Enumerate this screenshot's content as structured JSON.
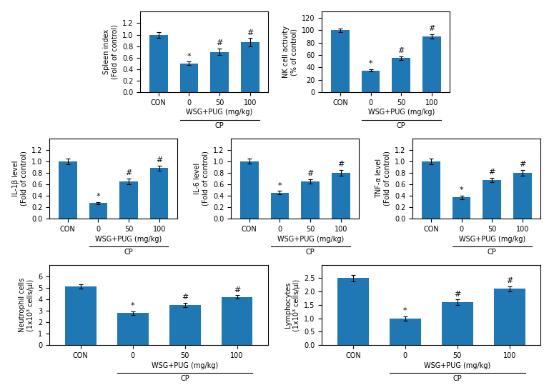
{
  "chart_data": [
    {
      "type": "bar",
      "ylabel": "Spleen index\n(Fold of control)",
      "categories": [
        "CON",
        "0",
        "50",
        "100"
      ],
      "values": [
        1.0,
        0.5,
        0.7,
        0.87
      ],
      "errors": [
        0.05,
        0.03,
        0.06,
        0.07
      ],
      "annotations": [
        null,
        "*",
        "#",
        "#"
      ],
      "ylim": [
        0,
        1.4
      ],
      "yticks": [
        {
          "value": 0,
          "label": "0.0"
        },
        0.2,
        0.4,
        0.6,
        0.8,
        {
          "value": 1,
          "label": "1.0"
        },
        1.2
      ],
      "xlabel": "WSG+PUG (mg/kg)",
      "bracket": {
        "label": "CP",
        "categories": [
          "0",
          "50",
          "100"
        ]
      }
    },
    {
      "type": "bar",
      "ylabel": "NK cell activity\n(% of control)",
      "categories": [
        "CON",
        "0",
        "50",
        "100"
      ],
      "values": [
        100,
        35,
        55,
        90
      ],
      "errors": [
        3,
        2,
        3,
        4
      ],
      "annotations": [
        null,
        "*",
        "#",
        "#"
      ],
      "ylim": [
        0,
        130
      ],
      "yticks": [
        0,
        20,
        40,
        60,
        80,
        100,
        120
      ],
      "xlabel": "WSG+PUG (mg/kg)",
      "bracket": {
        "label": "CP",
        "categories": [
          "0",
          "50",
          "100"
        ]
      }
    },
    {
      "type": "bar",
      "ylabel": "IL-1β level\n(Fold of control)",
      "categories": [
        "CON",
        "0",
        "50",
        "100"
      ],
      "values": [
        1.0,
        0.27,
        0.65,
        0.88
      ],
      "errors": [
        0.05,
        0.02,
        0.05,
        0.04
      ],
      "annotations": [
        null,
        "*",
        "#",
        "#"
      ],
      "ylim": [
        0,
        1.4
      ],
      "yticks": [
        {
          "value": 0,
          "label": "0.0"
        },
        0.2,
        0.4,
        0.6,
        0.8,
        {
          "value": 1,
          "label": "1.0"
        },
        1.2
      ],
      "xlabel": "WSG+PUG (mg/kg)",
      "bracket": {
        "label": "CP",
        "categories": [
          "0",
          "50",
          "100"
        ]
      }
    },
    {
      "type": "bar",
      "ylabel": "IL-6 level\n(Fold of control)",
      "categories": [
        "CON",
        "0",
        "50",
        "100"
      ],
      "values": [
        1.0,
        0.45,
        0.65,
        0.8
      ],
      "errors": [
        0.04,
        0.03,
        0.04,
        0.05
      ],
      "annotations": [
        null,
        "*",
        "#",
        "#"
      ],
      "ylim": [
        0,
        1.4
      ],
      "yticks": [
        {
          "value": 0,
          "label": "0.0"
        },
        0.2,
        0.4,
        0.6,
        0.8,
        {
          "value": 1,
          "label": "1.0"
        },
        1.2
      ],
      "xlabel": "WSG+PUG (mg/kg)",
      "bracket": {
        "label": "CP",
        "categories": [
          "0",
          "50",
          "100"
        ]
      }
    },
    {
      "type": "bar",
      "ylabel": "TNF-α level\n(Fold of control)",
      "categories": [
        "CON",
        "0",
        "50",
        "100"
      ],
      "values": [
        1.0,
        0.37,
        0.67,
        0.8
      ],
      "errors": [
        0.05,
        0.03,
        0.04,
        0.05
      ],
      "annotations": [
        null,
        "*",
        "#",
        "#"
      ],
      "ylim": [
        0,
        1.4
      ],
      "yticks": [
        {
          "value": 0,
          "label": "0.0"
        },
        0.2,
        0.4,
        0.6,
        0.8,
        {
          "value": 1,
          "label": "1.0"
        },
        1.2
      ],
      "xlabel": "WSG+PUG (mg/kg)",
      "bracket": {
        "label": "CP",
        "categories": [
          "0",
          "50",
          "100"
        ]
      }
    },
    {
      "type": "bar",
      "ylabel": "Neutrophil cells\n(1x10³ cells/μl)",
      "categories": [
        "CON",
        "0",
        "50",
        "100"
      ],
      "values": [
        5.1,
        2.8,
        3.5,
        4.2
      ],
      "errors": [
        0.2,
        0.15,
        0.18,
        0.15
      ],
      "annotations": [
        null,
        "*",
        "#",
        "#"
      ],
      "ylim": [
        0,
        7
      ],
      "yticks": [
        0,
        1,
        2,
        3,
        4,
        5,
        6
      ],
      "xlabel": "WSG+PUG (mg/kg)",
      "bracket": {
        "label": "CP",
        "categories": [
          "0",
          "50",
          "100"
        ]
      }
    },
    {
      "type": "bar",
      "ylabel": "Lymphocytes\n(1x10³ cells/μl)",
      "categories": [
        "CON",
        "0",
        "50",
        "100"
      ],
      "values": [
        2.5,
        1.0,
        1.6,
        2.1
      ],
      "errors": [
        0.12,
        0.08,
        0.1,
        0.1
      ],
      "annotations": [
        null,
        "*",
        "#",
        "#"
      ],
      "ylim": [
        0,
        3.0
      ],
      "yticks": [
        {
          "value": 0,
          "label": "0.0"
        },
        0.5,
        {
          "value": 1,
          "label": "1.0"
        },
        1.5,
        {
          "value": 2,
          "label": "2.0"
        },
        2.5
      ],
      "xlabel": "WSG+PUG (mg/kg)",
      "bracket": {
        "label": "CP",
        "categories": [
          "0",
          "50",
          "100"
        ]
      }
    }
  ]
}
